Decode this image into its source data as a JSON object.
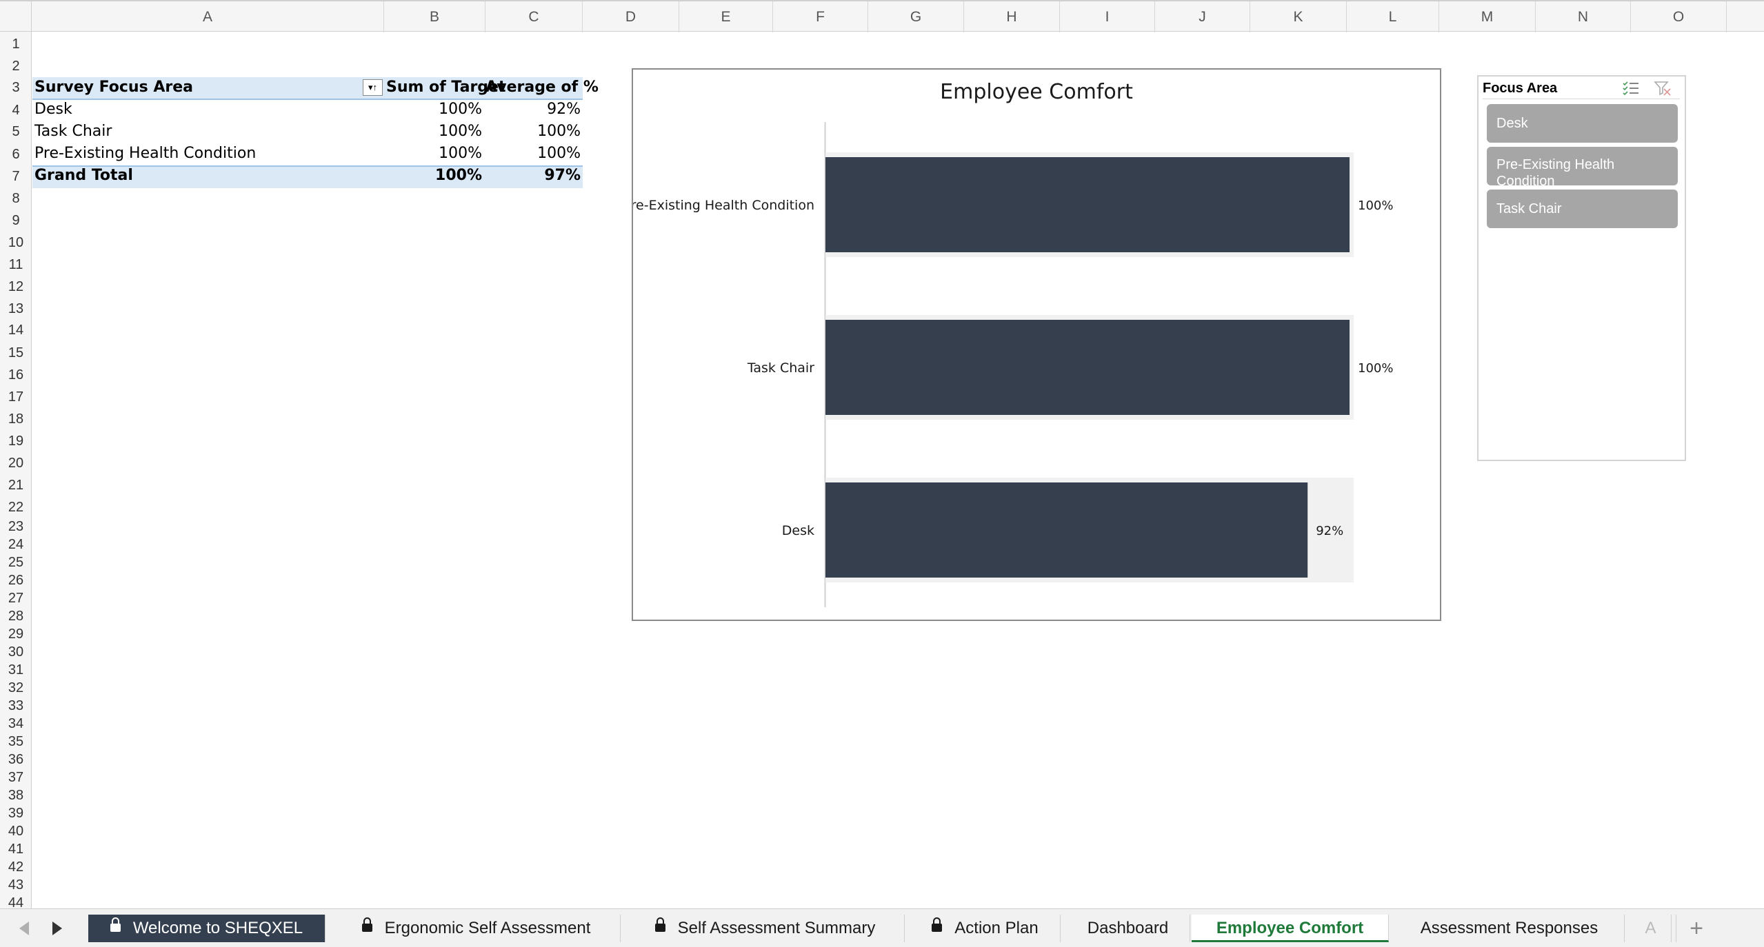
{
  "columns": [
    "A",
    "B",
    "C",
    "D",
    "E",
    "F",
    "G",
    "H",
    "I",
    "J",
    "K",
    "L",
    "M",
    "N",
    "O"
  ],
  "rows": [
    "1",
    "2",
    "3",
    "4",
    "5",
    "6",
    "7",
    "8",
    "9",
    "10",
    "11",
    "12",
    "13",
    "14",
    "15",
    "16",
    "17",
    "18",
    "19",
    "20",
    "21",
    "22",
    "23",
    "24",
    "25",
    "26",
    "27",
    "28",
    "29",
    "30",
    "31",
    "32",
    "33",
    "34",
    "35",
    "36",
    "37",
    "38",
    "39",
    "40",
    "41",
    "42",
    "43",
    "44"
  ],
  "pivot": {
    "headers": [
      "Survey Focus Area",
      "Sum of Target",
      "Average of %"
    ],
    "rows": [
      {
        "area": "Desk",
        "target": "100%",
        "avg": "92%"
      },
      {
        "area": "Task Chair",
        "target": "100%",
        "avg": "100%"
      },
      {
        "area": "Pre-Existing Health Condition",
        "target": "100%",
        "avg": "100%"
      }
    ],
    "total": {
      "label": "Grand Total",
      "target": "100%",
      "avg": "97%"
    }
  },
  "chart_data": {
    "type": "bar",
    "orientation": "horizontal",
    "title": "Employee Comfort",
    "categories": [
      "Pre-Existing Health Condition",
      "Task Chair",
      "Desk"
    ],
    "series": [
      {
        "values": [
          1.0,
          1.0,
          0.92
        ],
        "labels": [
          "100%",
          "100%",
          "92%"
        ],
        "color": "#353f4e"
      },
      {
        "values": [
          1.0,
          1.0,
          1.0
        ],
        "color": "#f1f1f1"
      }
    ],
    "xlim": [
      0,
      1
    ]
  },
  "slicer": {
    "title": "Focus Area",
    "items": [
      "Desk",
      "Pre-Existing Health Condition",
      "Task Chair"
    ]
  },
  "tabs": [
    {
      "label": "Welcome to SHEQXEL",
      "locked": true
    },
    {
      "label": "Ergonomic Self Assessment",
      "locked": true
    },
    {
      "label": "Self Assessment Summary",
      "locked": true
    },
    {
      "label": "Action Plan",
      "locked": true
    },
    {
      "label": "Dashboard",
      "locked": false
    },
    {
      "label": "Employee Comfort",
      "locked": false,
      "active": true
    },
    {
      "label": "Assessment Responses",
      "locked": false
    },
    {
      "label": "A",
      "locked": false
    }
  ],
  "tab_nav": {
    "add": "+"
  }
}
